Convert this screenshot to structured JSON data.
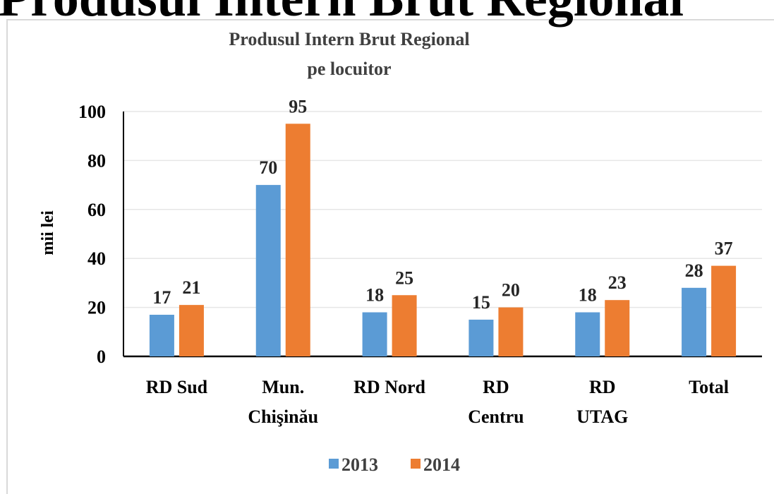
{
  "heading": "Produsul Intern Brut Regional",
  "chart_data": {
    "type": "bar",
    "title": [
      "Produsul Intern Brut Regional",
      "pe locuitor"
    ],
    "y_label": "mii lei",
    "categories": [
      [
        "RD Sud"
      ],
      [
        "Mun.",
        "Chişinău"
      ],
      [
        "RD Nord"
      ],
      [
        "RD",
        "Centru"
      ],
      [
        "RD",
        "UTAG"
      ],
      [
        "Total"
      ]
    ],
    "series": [
      {
        "name": "2013",
        "color": "#5b9bd5",
        "values": [
          17,
          70,
          18,
          15,
          18,
          28
        ]
      },
      {
        "name": "2014",
        "color": "#ed7d31",
        "values": [
          21,
          95,
          25,
          20,
          23,
          37
        ]
      }
    ],
    "ylim": [
      0,
      100
    ],
    "yticks": [
      0,
      20,
      40,
      60,
      80,
      100
    ],
    "grid": true,
    "legend": "bottom"
  }
}
